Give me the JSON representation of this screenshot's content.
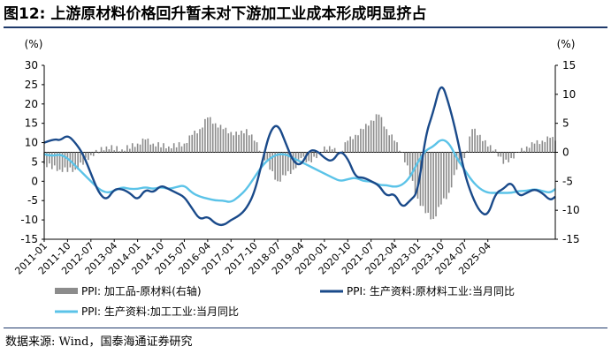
{
  "title": "图12:  上游原材料价格回升暂未对下游加工业成本形成明显挤占",
  "source": "数据来源:  Wind，国泰海通证券研究",
  "colors": {
    "bar": "#8c8c8c",
    "dark": "#1a4a8a",
    "light": "#5bc3e8"
  },
  "chart_data": {
    "type": "bar+line",
    "left_unit": "(%)",
    "right_unit": "(%)",
    "y_left": {
      "min": -15,
      "max": 30,
      "ticks": [
        "30",
        "25",
        "20",
        "15",
        "10",
        "5",
        "0",
        "-5",
        "-10",
        "-15"
      ]
    },
    "y_right": {
      "min": -15,
      "max": 15,
      "ticks": [
        "15",
        "10",
        "5",
        "0",
        "-5",
        "-10",
        "-15"
      ]
    },
    "x_ticks": [
      "2011-01",
      "2011-10",
      "2012-07",
      "2013-04",
      "2014-01",
      "2014-10",
      "2015-07",
      "2016-04",
      "2017-01",
      "2017-10",
      "2018-07",
      "2019-04",
      "2020-01",
      "2020-10",
      "2021-07",
      "2022-04",
      "2023-01",
      "2023-10",
      "2024-07",
      "2025-04"
    ],
    "legend": [
      {
        "key": "bar",
        "label": "PPI: 加工品-原材料(右轴)"
      },
      {
        "key": "dark",
        "label": "PPI: 生产资料:原材料工业:当月同比"
      },
      {
        "key": "light",
        "label": "PPI: 生产资料:加工工业:当月同比"
      }
    ],
    "series": [
      {
        "name": "PPI: 加工品-原材料(右轴)",
        "axis": "right",
        "type": "bar",
        "points": [
          [
            0,
            -2
          ],
          [
            6,
            -3
          ],
          [
            12,
            -3
          ],
          [
            18,
            -0.5
          ],
          [
            24,
            1
          ],
          [
            30,
            0.5
          ],
          [
            36,
            1.5
          ],
          [
            39,
            2.2
          ],
          [
            42,
            1.5
          ],
          [
            48,
            1
          ],
          [
            54,
            1.5
          ],
          [
            57,
            3
          ],
          [
            60,
            4
          ],
          [
            63,
            6
          ],
          [
            66,
            5
          ],
          [
            69,
            4
          ],
          [
            72,
            3.5
          ],
          [
            75,
            3
          ],
          [
            78,
            4
          ],
          [
            81,
            2
          ],
          [
            84,
            0
          ],
          [
            87,
            -3
          ],
          [
            90,
            -5
          ],
          [
            93,
            -4
          ],
          [
            96,
            -3
          ],
          [
            99,
            -1
          ],
          [
            102,
            -1.5
          ],
          [
            105,
            -1
          ],
          [
            108,
            1
          ],
          [
            111,
            0.5
          ],
          [
            114,
            0
          ],
          [
            117,
            2
          ],
          [
            120,
            3
          ],
          [
            123,
            4
          ],
          [
            126,
            5.5
          ],
          [
            129,
            6.5
          ],
          [
            132,
            4
          ],
          [
            135,
            2
          ],
          [
            138,
            0
          ],
          [
            141,
            -4
          ],
          [
            144,
            -8
          ],
          [
            147,
            -10.5
          ],
          [
            150,
            -11.5
          ],
          [
            153,
            -9
          ],
          [
            156,
            -7
          ],
          [
            159,
            -3
          ],
          [
            162,
            -1
          ],
          [
            165,
            4
          ],
          [
            168,
            3
          ],
          [
            171,
            1
          ],
          [
            174,
            0.5
          ],
          [
            177,
            -2
          ],
          [
            180,
            -1
          ],
          [
            183,
            0
          ],
          [
            186,
            1
          ],
          [
            189,
            1.5
          ],
          [
            192,
            2
          ],
          [
            195,
            2.5
          ],
          [
            197,
            2
          ]
        ]
      },
      {
        "name": "PPI: 生产资料:原材料工业:当月同比",
        "axis": "left",
        "type": "line",
        "points": [
          [
            0,
            10
          ],
          [
            4,
            11
          ],
          [
            6,
            10.5
          ],
          [
            9,
            12
          ],
          [
            12,
            10
          ],
          [
            15,
            7
          ],
          [
            18,
            2
          ],
          [
            21,
            -3
          ],
          [
            24,
            -5
          ],
          [
            27,
            -2
          ],
          [
            30,
            -2
          ],
          [
            33,
            -3
          ],
          [
            36,
            -5
          ],
          [
            39,
            -2
          ],
          [
            42,
            -3
          ],
          [
            45,
            -1
          ],
          [
            48,
            -2
          ],
          [
            51,
            -3
          ],
          [
            54,
            -4
          ],
          [
            57,
            -7
          ],
          [
            60,
            -10
          ],
          [
            63,
            -9
          ],
          [
            66,
            -11
          ],
          [
            69,
            -11.5
          ],
          [
            72,
            -10
          ],
          [
            75,
            -9
          ],
          [
            78,
            -7
          ],
          [
            81,
            -3
          ],
          [
            84,
            5
          ],
          [
            87,
            13
          ],
          [
            90,
            15
          ],
          [
            93,
            10
          ],
          [
            96,
            5
          ],
          [
            99,
            4
          ],
          [
            102,
            8
          ],
          [
            105,
            8
          ],
          [
            108,
            6
          ],
          [
            111,
            5
          ],
          [
            114,
            8
          ],
          [
            117,
            6
          ],
          [
            120,
            1
          ],
          [
            123,
            1
          ],
          [
            126,
            0
          ],
          [
            129,
            -1
          ],
          [
            132,
            -4
          ],
          [
            135,
            -3
          ],
          [
            138,
            -7
          ],
          [
            141,
            -5
          ],
          [
            144,
            -3
          ],
          [
            147,
            12
          ],
          [
            150,
            18
          ],
          [
            153,
            26
          ],
          [
            156,
            20
          ],
          [
            159,
            12
          ],
          [
            162,
            2
          ],
          [
            165,
            -4
          ],
          [
            168,
            -8
          ],
          [
            171,
            -9
          ],
          [
            174,
            -3
          ],
          [
            177,
            -2
          ],
          [
            180,
            0
          ],
          [
            183,
            -4
          ],
          [
            186,
            -3
          ],
          [
            189,
            -2
          ],
          [
            192,
            -3
          ],
          [
            195,
            -5
          ],
          [
            197,
            -4
          ]
        ]
      },
      {
        "name": "PPI: 生产资料:加工工业:当月同比",
        "axis": "left",
        "type": "line",
        "points": [
          [
            0,
            7
          ],
          [
            3,
            6.5
          ],
          [
            6,
            7
          ],
          [
            9,
            6
          ],
          [
            12,
            4
          ],
          [
            15,
            2
          ],
          [
            18,
            0
          ],
          [
            21,
            -2
          ],
          [
            24,
            -3
          ],
          [
            27,
            -2.5
          ],
          [
            30,
            -1.5
          ],
          [
            33,
            -2
          ],
          [
            36,
            -2
          ],
          [
            39,
            -1.5
          ],
          [
            42,
            -2
          ],
          [
            45,
            -1.5
          ],
          [
            48,
            -2
          ],
          [
            51,
            -1.5
          ],
          [
            54,
            -1
          ],
          [
            57,
            -3
          ],
          [
            60,
            -4
          ],
          [
            63,
            -4.5
          ],
          [
            66,
            -5
          ],
          [
            69,
            -5
          ],
          [
            72,
            -5.5
          ],
          [
            75,
            -4
          ],
          [
            78,
            -2
          ],
          [
            81,
            1
          ],
          [
            84,
            4
          ],
          [
            87,
            6
          ],
          [
            90,
            7
          ],
          [
            93,
            7
          ],
          [
            96,
            6
          ],
          [
            99,
            5
          ],
          [
            102,
            4
          ],
          [
            105,
            3
          ],
          [
            108,
            2
          ],
          [
            111,
            1
          ],
          [
            114,
            0
          ],
          [
            117,
            0.5
          ],
          [
            120,
            1
          ],
          [
            123,
            0
          ],
          [
            126,
            0
          ],
          [
            129,
            -1
          ],
          [
            132,
            -1
          ],
          [
            135,
            -1.5
          ],
          [
            138,
            -1
          ],
          [
            141,
            1
          ],
          [
            144,
            5
          ],
          [
            147,
            8
          ],
          [
            150,
            9
          ],
          [
            153,
            11
          ],
          [
            156,
            10
          ],
          [
            159,
            6
          ],
          [
            162,
            3
          ],
          [
            165,
            0
          ],
          [
            168,
            -2
          ],
          [
            171,
            -3
          ],
          [
            174,
            -3
          ],
          [
            177,
            -3
          ],
          [
            180,
            -3
          ],
          [
            183,
            -2.5
          ],
          [
            186,
            -2.5
          ],
          [
            189,
            -2
          ],
          [
            192,
            -2.5
          ],
          [
            195,
            -3
          ],
          [
            197,
            -2
          ]
        ]
      }
    ]
  }
}
